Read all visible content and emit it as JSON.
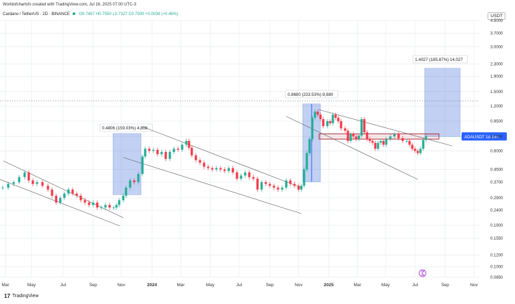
{
  "header": {
    "attribution": "Worldofchartsfx created with TradingView.com, Jul 16, 2025 07:00 UTC-3",
    "symbol": "Cardano / TetherUS · 2D · BINANCE",
    "ohlc": "O0.7467 H0.7550 L0.7327 C0.7500 +0.0034 (+0.46%)",
    "currency": "USDT"
  },
  "footer": {
    "logo": "17",
    "brand": "TradingView"
  },
  "chart_data": {
    "type": "candlestick",
    "yscale": "log",
    "ylim": [
      0.085,
      4.5
    ],
    "y_ticks": [
      "4.5000",
      "3.7000",
      "3.0000",
      "2.3000",
      "1.9000",
      "1.5000",
      "1.2000",
      "0.9500",
      "0.7500",
      "0.6000",
      "0.4500",
      "0.3700",
      "0.2900",
      "0.2400",
      "0.1900",
      "0.1550",
      "0.1200",
      "0.1000",
      "0.0850"
    ],
    "x_ticks": [
      {
        "label": "Mar",
        "bold": false
      },
      {
        "label": "May",
        "bold": false
      },
      {
        "label": "Jul",
        "bold": false
      },
      {
        "label": "Sep",
        "bold": false
      },
      {
        "label": "Nov",
        "bold": false
      },
      {
        "label": "2024",
        "bold": true
      },
      {
        "label": "Mar",
        "bold": false
      },
      {
        "label": "May",
        "bold": false
      },
      {
        "label": "Jul",
        "bold": false
      },
      {
        "label": "Sep",
        "bold": false
      },
      {
        "label": "Nov",
        "bold": false
      },
      {
        "label": "2025",
        "bold": true
      },
      {
        "label": "Mar",
        "bold": false
      },
      {
        "label": "May",
        "bold": false
      },
      {
        "label": "Jul",
        "bold": false
      },
      {
        "label": "Sep",
        "bold": false
      },
      {
        "label": "Nov",
        "bold": false
      }
    ],
    "price_path": [
      [
        0,
        0.34
      ],
      [
        8,
        0.36
      ],
      [
        16,
        0.37
      ],
      [
        24,
        0.4
      ],
      [
        32,
        0.43
      ],
      [
        38,
        0.38
      ],
      [
        44,
        0.36
      ],
      [
        50,
        0.37
      ],
      [
        58,
        0.35
      ],
      [
        66,
        0.33
      ],
      [
        72,
        0.3
      ],
      [
        78,
        0.27
      ],
      [
        84,
        0.29
      ],
      [
        90,
        0.31
      ],
      [
        96,
        0.33
      ],
      [
        102,
        0.31
      ],
      [
        108,
        0.3
      ],
      [
        114,
        0.28
      ],
      [
        120,
        0.27
      ],
      [
        126,
        0.26
      ],
      [
        132,
        0.27
      ],
      [
        138,
        0.25
      ],
      [
        144,
        0.25
      ],
      [
        150,
        0.26
      ],
      [
        156,
        0.25
      ],
      [
        162,
        0.25
      ],
      [
        166,
        0.26
      ],
      [
        170,
        0.28
      ],
      [
        176,
        0.3
      ],
      [
        180,
        0.34
      ],
      [
        186,
        0.38
      ],
      [
        192,
        0.37
      ],
      [
        198,
        0.42
      ],
      [
        204,
        0.55
      ],
      [
        208,
        0.62
      ],
      [
        214,
        0.6
      ],
      [
        220,
        0.61
      ],
      [
        226,
        0.57
      ],
      [
        232,
        0.59
      ],
      [
        238,
        0.53
      ],
      [
        244,
        0.59
      ],
      [
        250,
        0.62
      ],
      [
        256,
        0.61
      ],
      [
        262,
        0.66
      ],
      [
        268,
        0.7
      ],
      [
        272,
        0.63
      ],
      [
        276,
        0.56
      ],
      [
        282,
        0.52
      ],
      [
        288,
        0.5
      ],
      [
        294,
        0.47
      ],
      [
        300,
        0.46
      ],
      [
        306,
        0.45
      ],
      [
        312,
        0.46
      ],
      [
        318,
        0.45
      ],
      [
        324,
        0.44
      ],
      [
        330,
        0.46
      ],
      [
        336,
        0.43
      ],
      [
        342,
        0.39
      ],
      [
        348,
        0.41
      ],
      [
        354,
        0.43
      ],
      [
        360,
        0.4
      ],
      [
        366,
        0.39
      ],
      [
        372,
        0.33
      ],
      [
        378,
        0.37
      ],
      [
        384,
        0.36
      ],
      [
        390,
        0.35
      ],
      [
        396,
        0.34
      ],
      [
        402,
        0.33
      ],
      [
        408,
        0.34
      ],
      [
        414,
        0.38
      ],
      [
        420,
        0.36
      ],
      [
        426,
        0.35
      ],
      [
        432,
        0.33
      ],
      [
        436,
        0.35
      ],
      [
        440,
        0.45
      ],
      [
        444,
        0.58
      ],
      [
        448,
        0.72
      ],
      [
        452,
        1.0
      ],
      [
        456,
        1.1
      ],
      [
        460,
        1.05
      ],
      [
        464,
        0.98
      ],
      [
        468,
        0.88
      ],
      [
        474,
        0.95
      ],
      [
        478,
        0.92
      ],
      [
        482,
        1.05
      ],
      [
        486,
        1.0
      ],
      [
        490,
        0.95
      ],
      [
        494,
        0.85
      ],
      [
        500,
        0.82
      ],
      [
        504,
        0.7
      ],
      [
        508,
        0.78
      ],
      [
        512,
        0.75
      ],
      [
        516,
        0.72
      ],
      [
        520,
        0.76
      ],
      [
        524,
        0.98
      ],
      [
        528,
        0.8
      ],
      [
        532,
        0.72
      ],
      [
        536,
        0.7
      ],
      [
        540,
        0.68
      ],
      [
        544,
        0.62
      ],
      [
        548,
        0.68
      ],
      [
        552,
        0.7
      ],
      [
        556,
        0.66
      ],
      [
        560,
        0.72
      ],
      [
        566,
        0.75
      ],
      [
        572,
        0.78
      ],
      [
        578,
        0.73
      ],
      [
        584,
        0.7
      ],
      [
        590,
        0.7
      ],
      [
        594,
        0.66
      ],
      [
        598,
        0.62
      ],
      [
        602,
        0.6
      ],
      [
        606,
        0.58
      ],
      [
        610,
        0.62
      ],
      [
        614,
        0.71
      ],
      [
        618,
        0.75
      ]
    ],
    "current_price_label": "ADAUSDT  1d 14h",
    "current_price": 0.75,
    "measurements": [
      {
        "label": "0.4806 (159.03%) 4,806",
        "from": 0.305,
        "to": 0.785
      },
      {
        "label": "0.8680 (233.53%) 8,680",
        "from": 0.372,
        "to": 1.24
      },
      {
        "label": "1.4027 (185.87%) 14,027",
        "from": 0.75,
        "to": 2.15
      }
    ],
    "horizontal_zone": [
      0.72,
      0.78
    ],
    "dotted_level": 1.3
  }
}
